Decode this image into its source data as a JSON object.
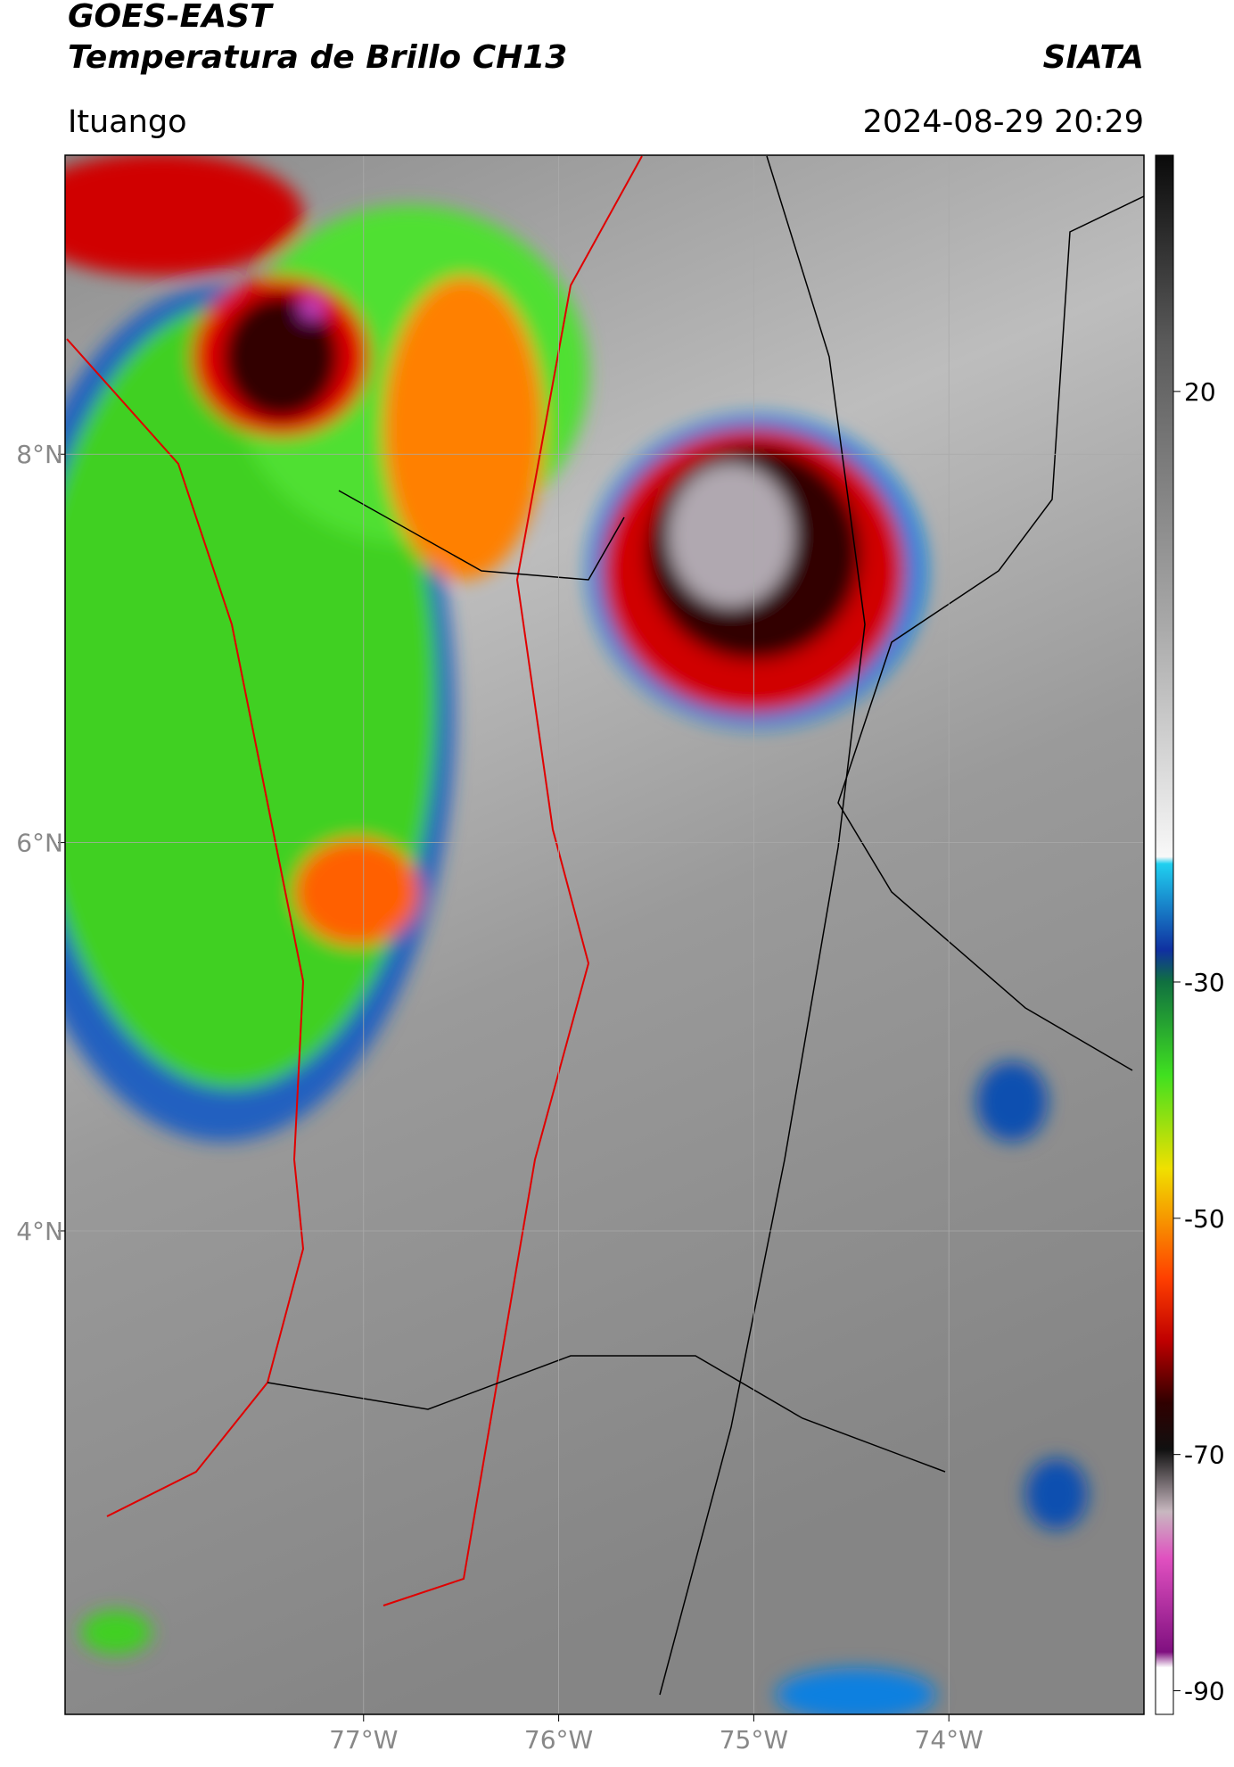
{
  "header": {
    "satellite": "GOES-EAST",
    "product": "Temperatura de Brillo CH13",
    "source": "SIATA",
    "location": "Ituango",
    "datetime": "2024-08-29 20:29"
  },
  "map": {
    "xlim": [
      -78.53,
      -73.0
    ],
    "ylim": [
      1.51,
      9.54
    ],
    "xticks": [
      {
        "value": -77,
        "label": "77°W"
      },
      {
        "value": -76,
        "label": "76°W"
      },
      {
        "value": -75,
        "label": "75°W"
      },
      {
        "value": -74,
        "label": "74°W"
      }
    ],
    "yticks": [
      {
        "value": 8,
        "label": "8°N"
      },
      {
        "value": 6,
        "label": "6°N"
      },
      {
        "value": 4,
        "label": "4°N"
      }
    ],
    "grid": true
  },
  "colorbar": {
    "lim": [
      -92,
      40
    ],
    "ticks": [
      20,
      -30,
      -50,
      -70,
      -90
    ]
  }
}
